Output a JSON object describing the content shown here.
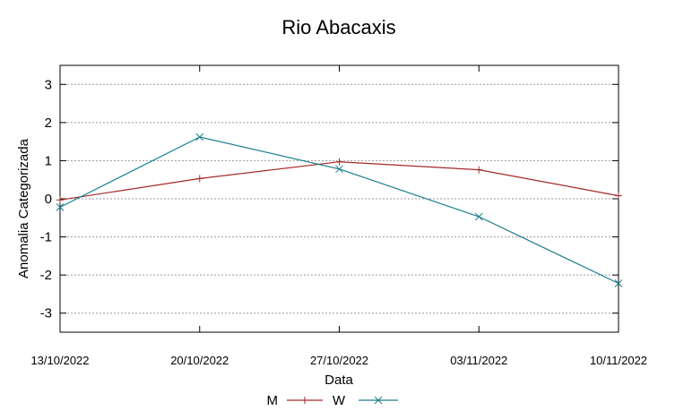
{
  "chart_data": {
    "type": "line",
    "title": "Rio Abacaxis",
    "xlabel": "Data",
    "ylabel": "Anomalia Categorizada",
    "categories": [
      "13/10/2022",
      "20/10/2022",
      "27/10/2022",
      "03/11/2022",
      "10/11/2022"
    ],
    "ylim": [
      -3.5,
      3.5
    ],
    "yticks": [
      -3,
      -2,
      -1,
      0,
      1,
      2,
      3
    ],
    "ytick_labels": [
      "-3",
      "-2",
      "-1",
      "0",
      "1",
      "2",
      "3"
    ],
    "grid": true,
    "legend_position": "bottom-center",
    "series": [
      {
        "name": "M",
        "marker": "+",
        "color": "#a52a2a",
        "values": [
          -0.03,
          0.53,
          0.97,
          0.76,
          0.08
        ]
      },
      {
        "name": "W",
        "marker": "x",
        "color": "#1a7f8a",
        "values": [
          -0.22,
          1.62,
          0.78,
          -0.47,
          -2.22
        ]
      }
    ]
  }
}
